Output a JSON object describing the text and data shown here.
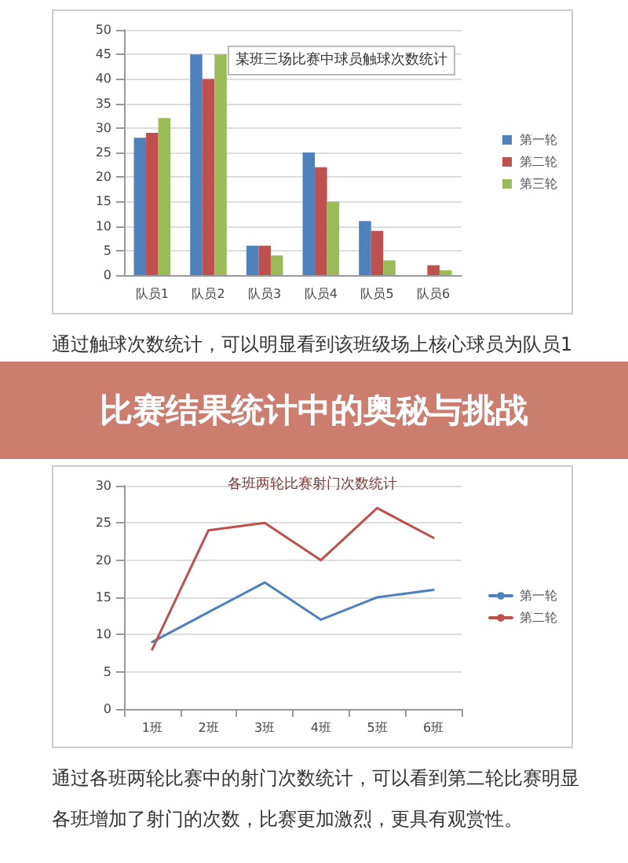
{
  "chart_data": [
    {
      "type": "bar",
      "title": "某班三场比赛中球员触球次数统计",
      "categories": [
        "队员1",
        "队员2",
        "队员3",
        "队员4",
        "队员5",
        "队员6"
      ],
      "series": [
        {
          "name": "第一轮",
          "color": "#4f81bd",
          "values": [
            28,
            45,
            6,
            25,
            11,
            0
          ]
        },
        {
          "name": "第二轮",
          "color": "#c0504d",
          "values": [
            29,
            40,
            6,
            22,
            9,
            2
          ]
        },
        {
          "name": "第三轮",
          "color": "#9bbb59",
          "values": [
            32,
            45,
            4,
            15,
            3,
            1
          ]
        }
      ],
      "ylim": [
        0,
        50
      ],
      "yticks": [
        0,
        5,
        10,
        15,
        20,
        25,
        30,
        35,
        40,
        45,
        50
      ],
      "grid": "y",
      "legend": "right"
    },
    {
      "type": "other",
      "title": "比赛结果统计中的奥秘与挑战",
      "annotations": [
        "通过触球次数统计，可以明显看到该班级场上核心球员为队员1"
      ]
    },
    {
      "type": "line",
      "title": "各班两轮比赛射门次数统计",
      "categories": [
        "1班",
        "2班",
        "3班",
        "4班",
        "5班",
        "6班"
      ],
      "series": [
        {
          "name": "第一轮",
          "color": "#4f81bd",
          "values": [
            9,
            13,
            17,
            12,
            15,
            16
          ]
        },
        {
          "name": "第二轮",
          "color": "#c0504d",
          "values": [
            8,
            24,
            25,
            20,
            27,
            23
          ]
        }
      ],
      "ylim": [
        0,
        30
      ],
      "yticks": [
        0,
        5,
        10,
        15,
        20,
        25,
        30
      ],
      "grid": "y",
      "legend": "right",
      "marker": "none",
      "line_style": "solid",
      "annotations": [
        "通过各班两轮比赛中的射门次数统计，可以看到第二轮比赛明显各班增加了射门的次数，比赛更加激烈，更具有观赏性。"
      ]
    }
  ]
}
